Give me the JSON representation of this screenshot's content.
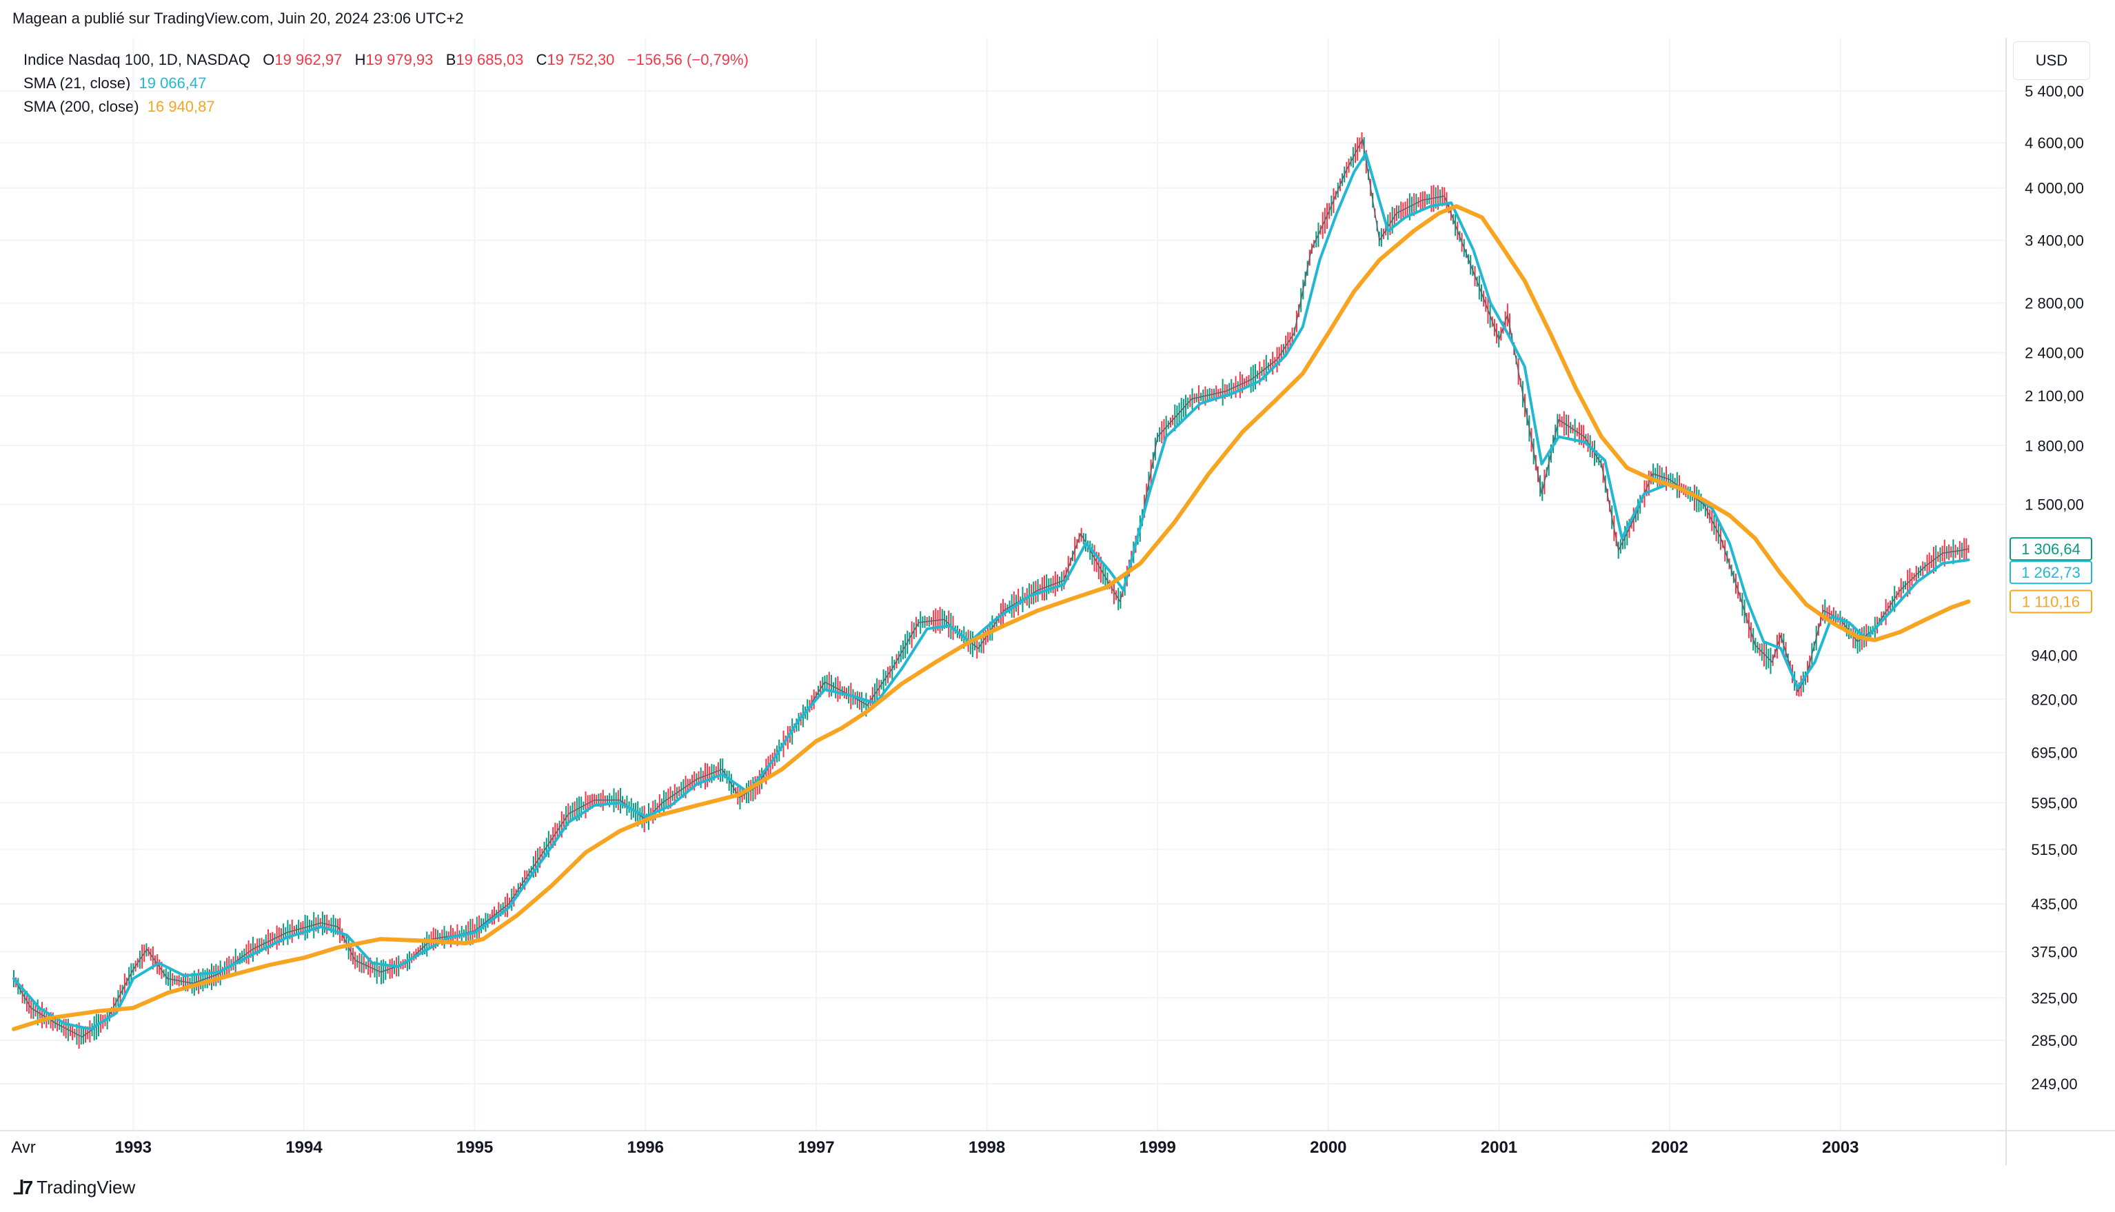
{
  "publisher": "Magean a publié sur TradingView.com, Juin 20, 2024 23:06 UTC+2",
  "legend": {
    "symbol": "Indice Nasdaq 100, 1D, NASDAQ",
    "open_label": "O",
    "open": "19 962,97",
    "high_label": "H",
    "high": "19 979,93",
    "low_label": "B",
    "low": "19 685,03",
    "close_label": "C",
    "close": "19 752,30",
    "change": "−156,56 (−0,79%)",
    "sma21_label": "SMA (21, close)",
    "sma21_value": "19 066,47",
    "sma200_label": "SMA (200, close)",
    "sma200_value": "16 940,87"
  },
  "currency": "USD",
  "brand": "TradingView",
  "colors": {
    "sma21": "#22b8d1",
    "sma200": "#f7a521",
    "up": "#089981",
    "down": "#f23645",
    "grid": "#f0f3fa"
  },
  "chart_data": {
    "type": "line",
    "scale": "log",
    "ylim": [
      220,
      6300
    ],
    "yticks": [
      5400,
      4600,
      4000,
      3400,
      2800,
      2400,
      2100,
      1800,
      1500,
      940,
      820,
      695,
      595,
      515,
      435,
      375,
      325,
      285,
      249
    ],
    "ytick_labels": [
      "5 400,00",
      "4 600,00",
      "4 000,00",
      "3 400,00",
      "2 800,00",
      "2 400,00",
      "2 100,00",
      "1 800,00",
      "1 500,00",
      "940,00",
      "820,00",
      "695,00",
      "595,00",
      "515,00",
      "435,00",
      "375,00",
      "325,00",
      "285,00",
      "249,00"
    ],
    "xlim": [
      1992.3,
      2003.95
    ],
    "xticks": [
      1992.3,
      1993,
      1994,
      1995,
      1996,
      1997,
      1998,
      1999,
      2000,
      2001,
      2002,
      2003
    ],
    "xtick_labels": [
      "Avr",
      "1993",
      "1994",
      "1995",
      "1996",
      "1997",
      "1998",
      "1999",
      "2000",
      "2001",
      "2002",
      "2003"
    ],
    "price_labels": [
      {
        "value": 1306.64,
        "text": "1 306,64",
        "color": "#089981",
        "filled": false
      },
      {
        "value": 1262.73,
        "text": "1 262,73",
        "color": "#22b8d1",
        "filled": false
      },
      {
        "value": 1110.16,
        "text": "1 110,16",
        "color": "#f7a521",
        "filled": false
      }
    ],
    "series": [
      {
        "name": "Indice Nasdaq 100",
        "points": [
          [
            1992.3,
            345
          ],
          [
            1992.4,
            315
          ],
          [
            1992.55,
            300
          ],
          [
            1992.7,
            288
          ],
          [
            1992.85,
            305
          ],
          [
            1993.0,
            355
          ],
          [
            1993.08,
            378
          ],
          [
            1993.2,
            345
          ],
          [
            1993.35,
            340
          ],
          [
            1993.5,
            350
          ],
          [
            1993.7,
            378
          ],
          [
            1993.9,
            398
          ],
          [
            1994.1,
            410
          ],
          [
            1994.2,
            405
          ],
          [
            1994.3,
            365
          ],
          [
            1994.45,
            352
          ],
          [
            1994.6,
            362
          ],
          [
            1994.75,
            390
          ],
          [
            1994.9,
            395
          ],
          [
            1995.0,
            400
          ],
          [
            1995.2,
            435
          ],
          [
            1995.4,
            510
          ],
          [
            1995.55,
            575
          ],
          [
            1995.7,
            600
          ],
          [
            1995.85,
            600
          ],
          [
            1996.0,
            565
          ],
          [
            1996.1,
            595
          ],
          [
            1996.3,
            640
          ],
          [
            1996.45,
            660
          ],
          [
            1996.55,
            605
          ],
          [
            1996.65,
            625
          ],
          [
            1996.8,
            710
          ],
          [
            1996.95,
            795
          ],
          [
            1997.05,
            865
          ],
          [
            1997.2,
            830
          ],
          [
            1997.3,
            805
          ],
          [
            1997.45,
            905
          ],
          [
            1997.6,
            1040
          ],
          [
            1997.75,
            1050
          ],
          [
            1997.85,
            1000
          ],
          [
            1997.95,
            960
          ],
          [
            1998.1,
            1080
          ],
          [
            1998.3,
            1150
          ],
          [
            1998.45,
            1185
          ],
          [
            1998.55,
            1370
          ],
          [
            1998.7,
            1190
          ],
          [
            1998.78,
            1110
          ],
          [
            1998.9,
            1400
          ],
          [
            1999.0,
            1850
          ],
          [
            1999.2,
            2080
          ],
          [
            1999.4,
            2130
          ],
          [
            1999.55,
            2210
          ],
          [
            1999.7,
            2350
          ],
          [
            1999.8,
            2550
          ],
          [
            1999.9,
            3300
          ],
          [
            2000.0,
            3700
          ],
          [
            2000.1,
            4200
          ],
          [
            2000.2,
            4650
          ],
          [
            2000.3,
            3400
          ],
          [
            2000.4,
            3700
          ],
          [
            2000.55,
            3850
          ],
          [
            2000.68,
            3900
          ],
          [
            2000.8,
            3300
          ],
          [
            2000.92,
            2800
          ],
          [
            2001.0,
            2500
          ],
          [
            2001.05,
            2700
          ],
          [
            2001.15,
            2050
          ],
          [
            2001.25,
            1550
          ],
          [
            2001.35,
            1950
          ],
          [
            2001.5,
            1850
          ],
          [
            2001.6,
            1700
          ],
          [
            2001.7,
            1300
          ],
          [
            2001.8,
            1450
          ],
          [
            2001.9,
            1650
          ],
          [
            2002.0,
            1620
          ],
          [
            2002.1,
            1560
          ],
          [
            2002.2,
            1500
          ],
          [
            2002.3,
            1350
          ],
          [
            2002.4,
            1150
          ],
          [
            2002.5,
            970
          ],
          [
            2002.6,
            920
          ],
          [
            2002.65,
            1000
          ],
          [
            2002.75,
            840
          ],
          [
            2002.8,
            880
          ],
          [
            2002.9,
            1080
          ],
          [
            2003.0,
            1050
          ],
          [
            2003.1,
            980
          ],
          [
            2003.2,
            1020
          ],
          [
            2003.35,
            1150
          ],
          [
            2003.5,
            1240
          ],
          [
            2003.6,
            1290
          ],
          [
            2003.7,
            1300
          ],
          [
            2003.75,
            1306.64
          ]
        ]
      },
      {
        "name": "SMA (21, close)",
        "points": [
          [
            1992.3,
            345
          ],
          [
            1992.45,
            315
          ],
          [
            1992.6,
            300
          ],
          [
            1992.75,
            295
          ],
          [
            1992.9,
            310
          ],
          [
            1993.0,
            345
          ],
          [
            1993.15,
            362
          ],
          [
            1993.3,
            348
          ],
          [
            1993.5,
            352
          ],
          [
            1993.7,
            372
          ],
          [
            1993.9,
            392
          ],
          [
            1994.1,
            405
          ],
          [
            1994.25,
            395
          ],
          [
            1994.4,
            362
          ],
          [
            1994.55,
            358
          ],
          [
            1994.7,
            375
          ],
          [
            1994.85,
            392
          ],
          [
            1995.0,
            398
          ],
          [
            1995.2,
            430
          ],
          [
            1995.4,
            500
          ],
          [
            1995.55,
            560
          ],
          [
            1995.7,
            590
          ],
          [
            1995.85,
            595
          ],
          [
            1996.0,
            570
          ],
          [
            1996.15,
            590
          ],
          [
            1996.3,
            630
          ],
          [
            1996.45,
            650
          ],
          [
            1996.6,
            615
          ],
          [
            1996.75,
            680
          ],
          [
            1996.9,
            770
          ],
          [
            1997.05,
            845
          ],
          [
            1997.2,
            830
          ],
          [
            1997.35,
            810
          ],
          [
            1997.5,
            900
          ],
          [
            1997.65,
            1020
          ],
          [
            1997.78,
            1030
          ],
          [
            1997.9,
            980
          ],
          [
            1998.05,
            1050
          ],
          [
            1998.25,
            1130
          ],
          [
            1998.45,
            1170
          ],
          [
            1998.58,
            1330
          ],
          [
            1998.72,
            1220
          ],
          [
            1998.8,
            1150
          ],
          [
            1998.95,
            1550
          ],
          [
            1999.05,
            1850
          ],
          [
            1999.25,
            2050
          ],
          [
            1999.45,
            2120
          ],
          [
            1999.6,
            2200
          ],
          [
            1999.75,
            2380
          ],
          [
            1999.85,
            2600
          ],
          [
            1999.95,
            3200
          ],
          [
            2000.05,
            3700
          ],
          [
            2000.15,
            4200
          ],
          [
            2000.22,
            4450
          ],
          [
            2000.35,
            3500
          ],
          [
            2000.45,
            3650
          ],
          [
            2000.6,
            3780
          ],
          [
            2000.72,
            3820
          ],
          [
            2000.85,
            3300
          ],
          [
            2000.95,
            2800
          ],
          [
            2001.05,
            2550
          ],
          [
            2001.15,
            2300
          ],
          [
            2001.25,
            1700
          ],
          [
            2001.35,
            1850
          ],
          [
            2001.5,
            1820
          ],
          [
            2001.62,
            1720
          ],
          [
            2001.72,
            1350
          ],
          [
            2001.85,
            1550
          ],
          [
            2002.0,
            1600
          ],
          [
            2002.12,
            1560
          ],
          [
            2002.25,
            1480
          ],
          [
            2002.35,
            1330
          ],
          [
            2002.45,
            1120
          ],
          [
            2002.55,
            980
          ],
          [
            2002.65,
            960
          ],
          [
            2002.75,
            850
          ],
          [
            2002.85,
            920
          ],
          [
            2002.95,
            1060
          ],
          [
            2003.05,
            1040
          ],
          [
            2003.15,
            990
          ],
          [
            2003.3,
            1080
          ],
          [
            2003.45,
            1180
          ],
          [
            2003.6,
            1250
          ],
          [
            2003.75,
            1262.73
          ]
        ]
      },
      {
        "name": "SMA (200, close)",
        "points": [
          [
            1992.3,
            295
          ],
          [
            1992.5,
            305
          ],
          [
            1992.8,
            312
          ],
          [
            1993.0,
            315
          ],
          [
            1993.2,
            330
          ],
          [
            1993.5,
            345
          ],
          [
            1993.8,
            360
          ],
          [
            1994.0,
            368
          ],
          [
            1994.2,
            380
          ],
          [
            1994.45,
            390
          ],
          [
            1994.7,
            388
          ],
          [
            1994.95,
            385
          ],
          [
            1995.05,
            390
          ],
          [
            1995.25,
            420
          ],
          [
            1995.45,
            460
          ],
          [
            1995.65,
            510
          ],
          [
            1995.85,
            545
          ],
          [
            1996.05,
            570
          ],
          [
            1996.3,
            590
          ],
          [
            1996.55,
            610
          ],
          [
            1996.8,
            660
          ],
          [
            1997.0,
            720
          ],
          [
            1997.15,
            750
          ],
          [
            1997.3,
            790
          ],
          [
            1997.5,
            860
          ],
          [
            1997.7,
            920
          ],
          [
            1997.9,
            980
          ],
          [
            1998.1,
            1030
          ],
          [
            1998.3,
            1080
          ],
          [
            1998.5,
            1120
          ],
          [
            1998.7,
            1160
          ],
          [
            1998.9,
            1250
          ],
          [
            1999.1,
            1420
          ],
          [
            1999.3,
            1650
          ],
          [
            1999.5,
            1880
          ],
          [
            1999.7,
            2080
          ],
          [
            1999.85,
            2250
          ],
          [
            2000.0,
            2550
          ],
          [
            2000.15,
            2900
          ],
          [
            2000.3,
            3200
          ],
          [
            2000.5,
            3500
          ],
          [
            2000.65,
            3700
          ],
          [
            2000.75,
            3780
          ],
          [
            2000.9,
            3650
          ],
          [
            2001.0,
            3380
          ],
          [
            2001.15,
            3000
          ],
          [
            2001.3,
            2550
          ],
          [
            2001.45,
            2150
          ],
          [
            2001.6,
            1850
          ],
          [
            2001.75,
            1680
          ],
          [
            2001.9,
            1620
          ],
          [
            2002.05,
            1580
          ],
          [
            2002.2,
            1520
          ],
          [
            2002.35,
            1450
          ],
          [
            2002.5,
            1350
          ],
          [
            2002.65,
            1210
          ],
          [
            2002.8,
            1100
          ],
          [
            2002.95,
            1040
          ],
          [
            2003.1,
            995
          ],
          [
            2003.2,
            985
          ],
          [
            2003.35,
            1010
          ],
          [
            2003.5,
            1050
          ],
          [
            2003.65,
            1090
          ],
          [
            2003.75,
            1110.16
          ]
        ]
      }
    ]
  }
}
